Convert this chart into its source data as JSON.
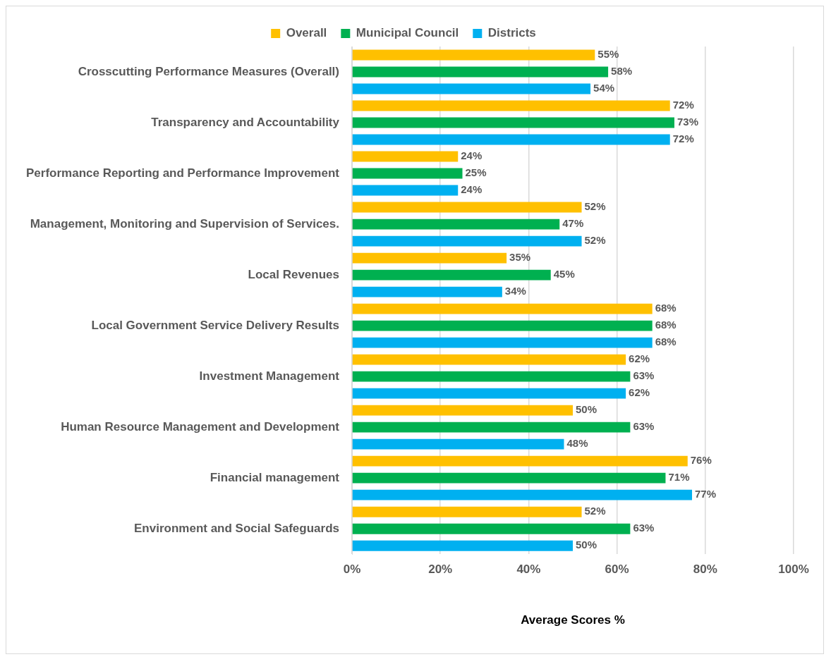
{
  "chart_data": {
    "type": "bar",
    "orientation": "horizontal",
    "xlabel": "Average Scores %",
    "categories": [
      "Crosscutting Performance Measures (Overall)",
      "Transparency and Accountability",
      "Performance Reporting and Performance Improvement",
      "Management, Monitoring and Supervision of Services.",
      "Local Revenues",
      "Local Government Service Delivery Results",
      "Investment Management",
      "Human Resource Management and Development",
      "Financial management",
      "Environment and Social Safeguards"
    ],
    "series": [
      {
        "name": "Overall",
        "color": "#ffc000",
        "values": [
          55,
          72,
          24,
          52,
          35,
          68,
          62,
          50,
          76,
          52
        ],
        "value_labels": [
          "55%",
          "72%",
          "24%",
          "52%",
          "35%",
          "68%",
          "62%",
          "50%",
          "76%",
          "52%"
        ]
      },
      {
        "name": "Municipal Council",
        "color": "#00b050",
        "values": [
          58,
          73,
          25,
          47,
          45,
          68,
          63,
          63,
          71,
          63
        ],
        "value_labels": [
          "58%",
          "73%",
          "25%",
          "47%",
          "45%",
          "68%",
          "63%",
          "63%",
          "71%",
          "63%"
        ]
      },
      {
        "name": "Districts",
        "color": "#00b0f0",
        "values": [
          54,
          72,
          24,
          52,
          34,
          68,
          62,
          48,
          77,
          50
        ],
        "value_labels": [
          "54%",
          "72%",
          "24%",
          "52%",
          "34%",
          "68%",
          "62%",
          "48%",
          "77%",
          "50%"
        ]
      }
    ],
    "xlim": [
      0,
      100
    ],
    "xticks": [
      {
        "value": 0,
        "label": "0%"
      },
      {
        "value": 20,
        "label": "20%"
      },
      {
        "value": 40,
        "label": "40%"
      },
      {
        "value": 60,
        "label": "60%"
      },
      {
        "value": 80,
        "label": "80%"
      },
      {
        "value": 100,
        "label": "100%"
      }
    ],
    "grid": "x",
    "legend": "top"
  }
}
